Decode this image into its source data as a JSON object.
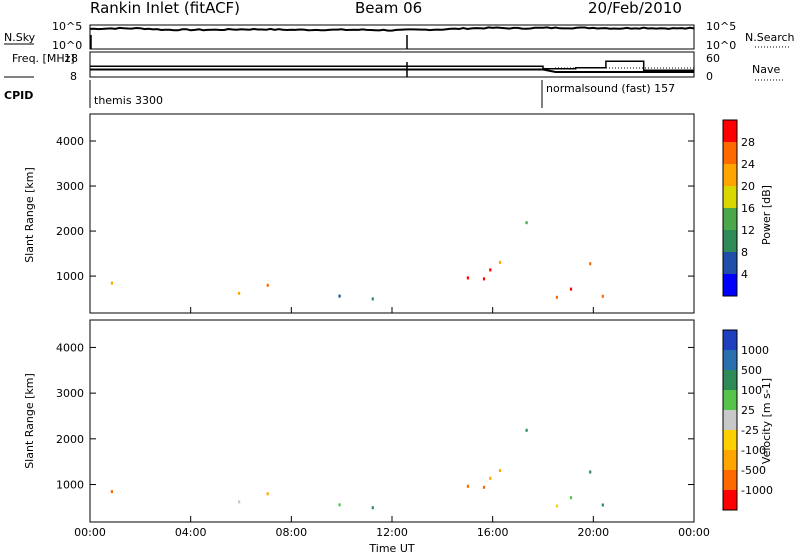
{
  "header": {
    "station": "Rankin Inlet (fitACF)",
    "beam": "Beam 06",
    "date": "20/Feb/2010"
  },
  "colors": {
    "frame": "#000000",
    "power_scale": [
      "#0000ff",
      "#1f4fa8",
      "#2e8b57",
      "#4aa84a",
      "#d8d800",
      "#ffa500",
      "#ff6a00",
      "#ff0000"
    ],
    "velocity_scale": [
      "#1f3fbf",
      "#2a6fb0",
      "#2e8b57",
      "#56c34a",
      "#c8c8c8",
      "#ffd000",
      "#ffa500",
      "#ff6a00",
      "#ff0000"
    ]
  },
  "chart_data": [
    {
      "type": "line",
      "name": "nsky-nsearch",
      "ylabel_left": "N.Sky",
      "ylabel_right": "N.Search",
      "left_ticks": [
        "10^5",
        "10^0"
      ],
      "right_ticks": [
        "10^5",
        "10^0"
      ],
      "x": [
        "00:00",
        "01:00",
        "02:00",
        "03:00",
        "04:00",
        "05:00",
        "06:00",
        "07:00",
        "08:00",
        "09:00",
        "10:00",
        "11:00",
        "12:00",
        "13:00",
        "14:00",
        "15:00",
        "16:00",
        "17:00",
        "18:00",
        "19:00",
        "20:00",
        "21:00",
        "22:00",
        "23:00",
        "24:00"
      ],
      "nsky": [
        4.2,
        4.3,
        4.3,
        4.0,
        4.0,
        4.0,
        4.1,
        4.1,
        4.0,
        4.0,
        4.0,
        4.0,
        3.9,
        4.0,
        4.1,
        4.3,
        4.4,
        4.3,
        4.4,
        4.4,
        4.4,
        4.3,
        4.4,
        4.3,
        4.3
      ],
      "ylim": [
        0,
        5
      ]
    },
    {
      "type": "line",
      "name": "freq-nave",
      "ylabel_left": "Freq. [MHz]",
      "ylabel_right": "Nave",
      "left_ticks": [
        "18",
        "8"
      ],
      "right_ticks": [
        "60",
        "0"
      ],
      "x_hours": [
        0,
        18,
        18.5,
        19.5,
        20.5,
        21.5,
        22,
        24
      ],
      "freq": [
        11,
        11,
        10,
        10,
        10,
        10,
        10,
        10
      ],
      "nave_hours": [
        0,
        18,
        18,
        19.3,
        19.3,
        20.5,
        20.5,
        22,
        22,
        24
      ],
      "nave": [
        26,
        26,
        20,
        20,
        22,
        22,
        38,
        38,
        16,
        16
      ],
      "nave_ylim": [
        0,
        60
      ],
      "freq_ylim": [
        8,
        18
      ]
    },
    {
      "type": "table",
      "name": "cpid",
      "label": "CPID",
      "entries": [
        {
          "start": "00:00",
          "text": "themis 3300"
        },
        {
          "start": "18:00",
          "text": "normalsound (fast) 157"
        }
      ]
    },
    {
      "type": "heatmap",
      "name": "power",
      "ylabel": "Slant Range [km]",
      "yticks": [
        1000,
        2000,
        3000,
        4000
      ],
      "ylim": [
        180,
        4600
      ],
      "colorbar_label": "Power [dB]",
      "colorbar_ticks": [
        "4",
        "8",
        "12",
        "16",
        "20",
        "24",
        "28"
      ],
      "colorbar_range": [
        0,
        32
      ]
    },
    {
      "type": "heatmap",
      "name": "velocity",
      "ylabel": "Slant Range [km]",
      "yticks": [
        1000,
        2000,
        3000,
        4000
      ],
      "ylim": [
        180,
        4600
      ],
      "colorbar_label": "Velocity [m s-1]",
      "colorbar_ticks": [
        "1000",
        "500",
        "100",
        "25",
        "-25",
        "-100",
        "-500",
        "-1000"
      ],
      "xlabel": "Time UT",
      "xticks": [
        "00:00",
        "04:00",
        "08:00",
        "12:00",
        "16:00",
        "20:00",
        "00:00"
      ],
      "xlim": [
        0,
        24
      ]
    }
  ]
}
